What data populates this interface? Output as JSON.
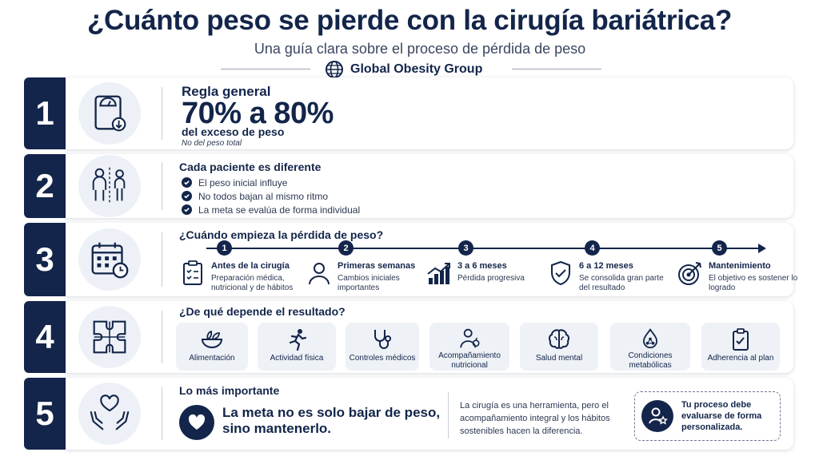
{
  "header": {
    "title": "¿Cuánto peso se pierde con la cirugía bariátrica?",
    "subtitle": "Una guía clara sobre el proceso de pérdida de peso",
    "brand": "Global Obesity Group",
    "brand_icon": "globe-icon"
  },
  "colors": {
    "navy": "#13254a",
    "light_panel": "#eef1f6"
  },
  "section1": {
    "number": "1",
    "icon": "scale-icon",
    "heading": "Regla general",
    "value": "70% a 80%",
    "label": "del exceso de peso",
    "note": "No del peso total"
  },
  "section2": {
    "number": "2",
    "icon": "two-people-icon",
    "heading": "Cada paciente es diferente",
    "items": [
      "El peso inicial influye",
      "No todos bajan al mismo ritmo",
      "La meta se evalúa de forma individual"
    ]
  },
  "section3": {
    "number": "3",
    "icon": "calendar-clock-icon",
    "heading": "¿Cuándo empieza la pérdida de peso?",
    "steps": [
      {
        "n": "1",
        "title": "Antes de la cirugía",
        "desc": "Preparación médica, nutricional y de hábitos",
        "icon": "clipboard-icon"
      },
      {
        "n": "2",
        "title": "Primeras semanas",
        "desc": "Cambios iniciales importantes",
        "icon": "person-icon"
      },
      {
        "n": "3",
        "title": "3 a 6 meses",
        "desc": "Pérdida progresiva",
        "icon": "growth-chart-icon"
      },
      {
        "n": "4",
        "title": "6 a 12 meses",
        "desc": "Se consolida gran parte del resultado",
        "icon": "shield-check-icon"
      },
      {
        "n": "5",
        "title": "Mantenimiento",
        "desc": "El objetivo es sostener lo logrado",
        "icon": "target-icon"
      }
    ]
  },
  "section4": {
    "number": "4",
    "icon": "puzzle-icon",
    "heading": "¿De qué depende el resultado?",
    "factors": [
      {
        "label": "Alimentación",
        "icon": "salad-bowl-icon"
      },
      {
        "label": "Actividad física",
        "icon": "runner-icon"
      },
      {
        "label": "Controles médicos",
        "icon": "stethoscope-icon"
      },
      {
        "label": "Acompañamiento nutricional",
        "icon": "nutritionist-icon"
      },
      {
        "label": "Salud mental",
        "icon": "brain-icon"
      },
      {
        "label": "Condiciones metabólicas",
        "icon": "drop-icon"
      },
      {
        "label": "Adherencia al plan",
        "icon": "clipboard-check-icon"
      }
    ]
  },
  "section5": {
    "number": "5",
    "icon": "hands-heart-icon",
    "heading": "Lo más importante",
    "message": "La meta no es solo bajar de peso, sino mantenerlo.",
    "body": "La cirugía es una herramienta, pero el acompañamiento integral y los hábitos sostenibles hacen la diferencia.",
    "callout": "Tu proceso debe evaluarse de forma personalizada."
  }
}
